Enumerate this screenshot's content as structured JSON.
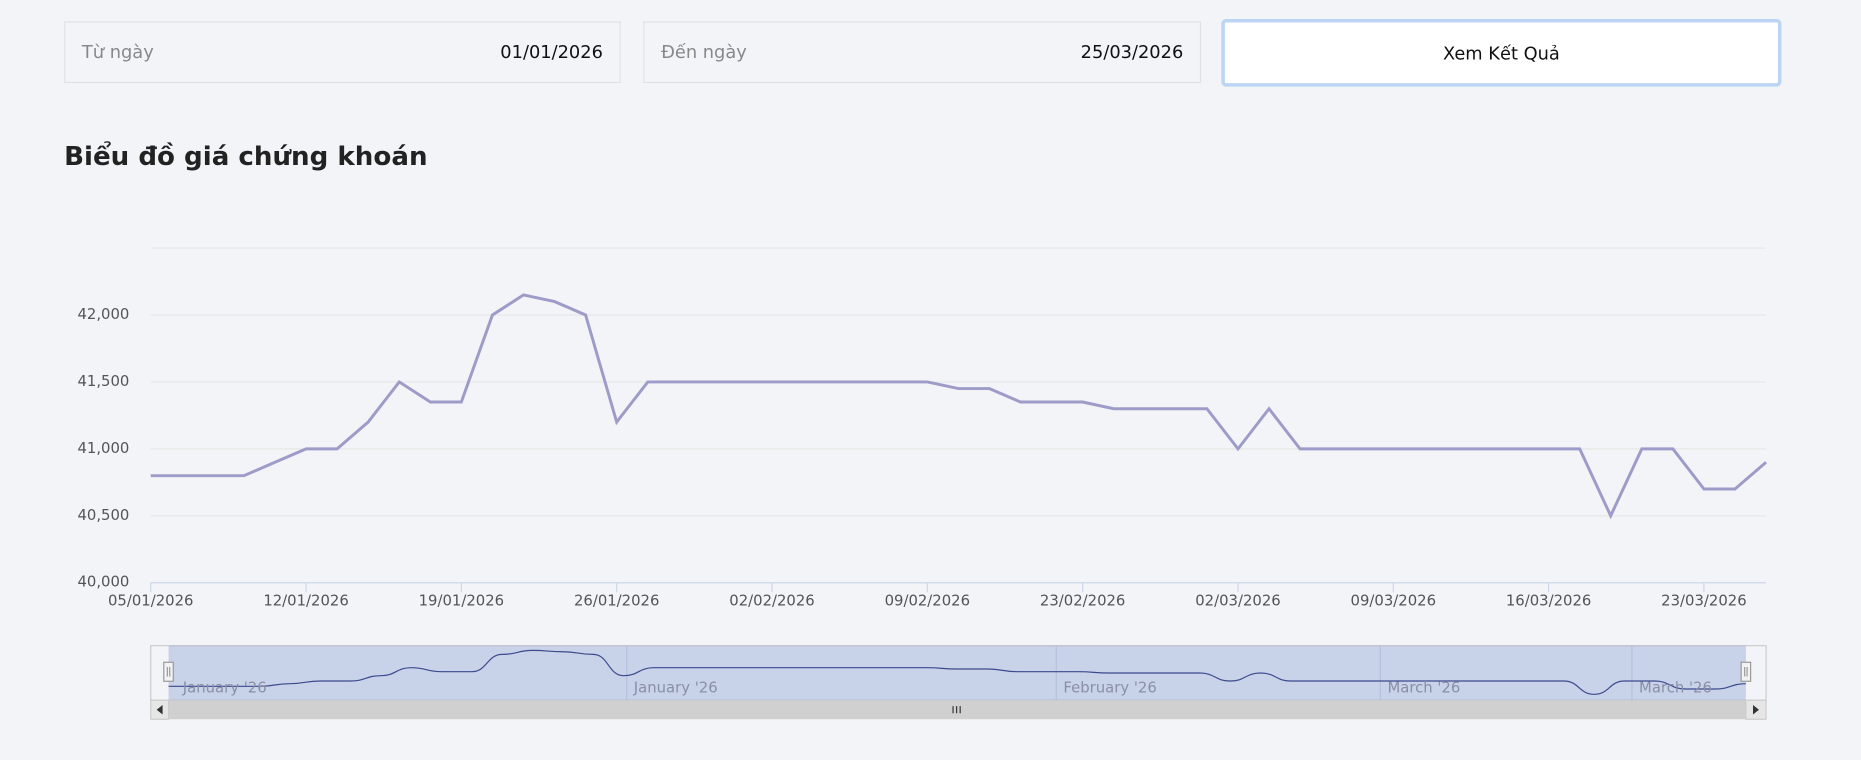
{
  "form": {
    "from_label": "Từ ngày",
    "from_value": "01/01/2026",
    "to_label": "Đến ngày",
    "to_value": "25/03/2026",
    "button": "Xem Kết Quả"
  },
  "chart_data": {
    "type": "line",
    "title": "Biểu đồ giá chứng khoán",
    "color": "#9d9cc9",
    "x": [
      "05/01/2026",
      "06/01/2026",
      "07/01/2026",
      "08/01/2026",
      "09/01/2026",
      "12/01/2026",
      "13/01/2026",
      "14/01/2026",
      "15/01/2026",
      "16/01/2026",
      "19/01/2026",
      "20/01/2026",
      "21/01/2026",
      "22/01/2026",
      "23/01/2026",
      "26/01/2026",
      "27/01/2026",
      "28/01/2026",
      "29/01/2026",
      "30/01/2026",
      "02/02/2026",
      "03/02/2026",
      "04/02/2026",
      "05/02/2026",
      "06/02/2026",
      "09/02/2026",
      "10/02/2026",
      "11/02/2026",
      "12/02/2026",
      "13/02/2026",
      "23/02/2026",
      "24/02/2026",
      "25/02/2026",
      "26/02/2026",
      "27/02/2026",
      "02/03/2026",
      "03/03/2026",
      "04/03/2026",
      "05/03/2026",
      "06/03/2026",
      "09/03/2026",
      "10/03/2026",
      "11/03/2026",
      "12/03/2026",
      "13/03/2026",
      "16/03/2026",
      "17/03/2026",
      "18/03/2026",
      "19/03/2026",
      "20/03/2026",
      "23/03/2026",
      "24/03/2026",
      "25/03/2026"
    ],
    "values": [
      40800,
      40800,
      40800,
      40800,
      40900,
      41000,
      41000,
      41200,
      41500,
      41350,
      41350,
      42000,
      42150,
      42100,
      42000,
      41200,
      41500,
      41500,
      41500,
      41500,
      41500,
      41500,
      41500,
      41500,
      41500,
      41500,
      41450,
      41450,
      41350,
      41350,
      41350,
      41300,
      41300,
      41300,
      41300,
      41000,
      41300,
      41000,
      41000,
      41000,
      41000,
      41000,
      41000,
      41000,
      41000,
      41000,
      41000,
      40500,
      41000,
      41000,
      40700,
      40700,
      40900
    ],
    "xticks": [
      "05/01/2026",
      "12/01/2026",
      "19/01/2026",
      "26/01/2026",
      "02/02/2026",
      "09/02/2026",
      "23/02/2026",
      "02/03/2026",
      "09/03/2026",
      "16/03/2026",
      "23/03/2026"
    ],
    "ylim": [
      40000,
      42500
    ],
    "yticks": [
      {
        "value": 40000,
        "label": "40,000"
      },
      {
        "value": 40500,
        "label": "40,500"
      },
      {
        "value": 41000,
        "label": "41,000"
      },
      {
        "value": 41500,
        "label": "41,500"
      },
      {
        "value": 42000,
        "label": "42,000"
      }
    ],
    "grid": true,
    "navigator_labels": [
      "January '26",
      "January '26",
      "February '26",
      "March '26",
      "March '26"
    ]
  }
}
